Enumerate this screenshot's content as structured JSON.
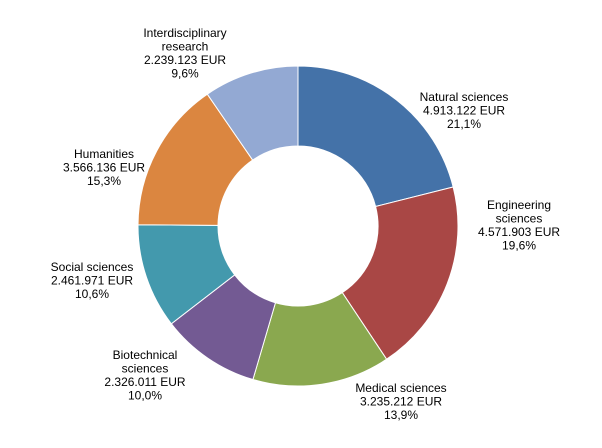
{
  "chart_data": {
    "type": "pie",
    "donut": true,
    "title": "",
    "legend": "none",
    "slices": [
      {
        "label_lines": [
          "Natural sciences"
        ],
        "amount": "4.913.122 EUR",
        "percent": "21,1%",
        "value": 21.1,
        "color": "#4472a8"
      },
      {
        "label_lines": [
          "Engineering",
          "sciences"
        ],
        "amount": "4.571.903 EUR",
        "percent": "19,6%",
        "value": 19.6,
        "color": "#a94745"
      },
      {
        "label_lines": [
          "Medical sciences"
        ],
        "amount": "3.235.212 EUR",
        "percent": "13,9%",
        "value": 13.9,
        "color": "#8aa84f"
      },
      {
        "label_lines": [
          "Biotechnical",
          "sciences"
        ],
        "amount": "2.326.011 EUR",
        "percent": "10,0%",
        "value": 10.0,
        "color": "#735a93"
      },
      {
        "label_lines": [
          "Social sciences"
        ],
        "amount": "2.461.971 EUR",
        "percent": "10,6%",
        "value": 10.6,
        "color": "#4399ad"
      },
      {
        "label_lines": [
          "Humanities"
        ],
        "amount": "3.566.136 EUR",
        "percent": "15,3%",
        "value": 15.3,
        "color": "#db8640"
      },
      {
        "label_lines": [
          "Interdisciplinary",
          "research"
        ],
        "amount": "2.239.123 EUR",
        "percent": "9,6%",
        "value": 9.6,
        "color": "#93a9d3"
      }
    ]
  }
}
